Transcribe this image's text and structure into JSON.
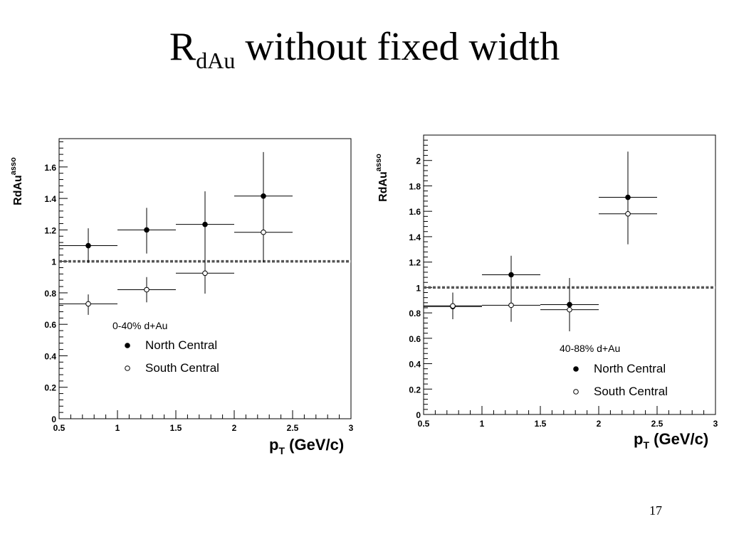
{
  "slide": {
    "title_main": "R",
    "title_sub": "dAu",
    "title_rest": "without fixed width",
    "page_number": "17"
  },
  "chart_data": [
    {
      "type": "scatter",
      "centrality_label": "0-40% d+Au",
      "ylabel_main": "RdAu",
      "ylabel_sup": "asso",
      "xlabel_main": "p",
      "xlabel_sub": "T",
      "xlabel_unit": " (GeV/c)",
      "xlim": [
        0.5,
        3
      ],
      "ylim": [
        0,
        1.78
      ],
      "xticks": [
        "0.5",
        "1",
        "1.5",
        "2",
        "2.5",
        "3"
      ],
      "xtick_values": [
        0.5,
        1,
        1.5,
        2,
        2.5,
        3
      ],
      "yticks": [
        "0",
        "0.2",
        "0.4",
        "0.6",
        "0.8",
        "1",
        "1.2",
        "1.4",
        "1.6"
      ],
      "ytick_values": [
        0,
        0.2,
        0.4,
        0.6,
        0.8,
        1,
        1.2,
        1.4,
        1.6
      ],
      "reference_line": 1.0,
      "legend_placement": "bottom-center",
      "series": [
        {
          "name": "North Central",
          "marker": "filled",
          "points": [
            {
              "x": 0.75,
              "y": 1.1,
              "xerr": 0.25,
              "yerr_lo": 0.11,
              "yerr_hi": 0.11
            },
            {
              "x": 1.25,
              "y": 1.2,
              "xerr": 0.25,
              "yerr_lo": 0.15,
              "yerr_hi": 0.14
            },
            {
              "x": 1.75,
              "y": 1.235,
              "xerr": 0.25,
              "yerr_lo": 0.43,
              "yerr_hi": 0.21
            },
            {
              "x": 2.25,
              "y": 1.415,
              "xerr": 0.25,
              "yerr_lo": 0.415,
              "yerr_hi": 0.28
            }
          ]
        },
        {
          "name": "South Central",
          "marker": "open",
          "points": [
            {
              "x": 0.75,
              "y": 0.73,
              "xerr": 0.25,
              "yerr_lo": 0.07,
              "yerr_hi": 0.06
            },
            {
              "x": 1.25,
              "y": 0.82,
              "xerr": 0.25,
              "yerr_lo": 0.08,
              "yerr_hi": 0.08
            },
            {
              "x": 1.75,
              "y": 0.925,
              "xerr": 0.25,
              "yerr_lo": 0.13,
              "yerr_hi": 0.15
            },
            {
              "x": 2.25,
              "y": 1.185,
              "xerr": 0.25,
              "yerr_lo": 0.19,
              "yerr_hi": 0.1
            }
          ]
        }
      ]
    },
    {
      "type": "scatter",
      "centrality_label": "40-88% d+Au",
      "ylabel_main": "RdAu",
      "ylabel_sup": "asso",
      "xlabel_main": "p",
      "xlabel_sub": "T",
      "xlabel_unit": " (GeV/c)",
      "xlim": [
        0.5,
        3
      ],
      "ylim": [
        0,
        2.2
      ],
      "xticks": [
        "0.5",
        "1",
        "1.5",
        "2",
        "2.5",
        "3"
      ],
      "xtick_values": [
        0.5,
        1,
        1.5,
        2,
        2.5,
        3
      ],
      "yticks": [
        "0",
        "0.2",
        "0.4",
        "0.6",
        "0.8",
        "1",
        "1.2",
        "1.4",
        "1.6",
        "1.8",
        "2"
      ],
      "ytick_values": [
        0,
        0.2,
        0.4,
        0.6,
        0.8,
        1,
        1.2,
        1.4,
        1.6,
        1.8,
        2
      ],
      "reference_line": 1.0,
      "legend_placement": "bottom-right",
      "series": [
        {
          "name": "North Central",
          "marker": "filled",
          "points": [
            {
              "x": 0.75,
              "y": 0.85,
              "xerr": 0.25,
              "yerr_lo": 0.1,
              "yerr_hi": 0.11
            },
            {
              "x": 1.25,
              "y": 1.1,
              "xerr": 0.25,
              "yerr_lo": 0.28,
              "yerr_hi": 0.15
            },
            {
              "x": 1.75,
              "y": 0.865,
              "xerr": 0.25,
              "yerr_lo": 0.21,
              "yerr_hi": 0.21
            },
            {
              "x": 2.25,
              "y": 1.71,
              "xerr": 0.25,
              "yerr_lo": 0.37,
              "yerr_hi": 0.36
            }
          ]
        },
        {
          "name": "South Central",
          "marker": "open",
          "points": [
            {
              "x": 0.75,
              "y": 0.855,
              "xerr": 0.25,
              "yerr_lo": 0.1,
              "yerr_hi": 0.1
            },
            {
              "x": 1.25,
              "y": 0.86,
              "xerr": 0.25,
              "yerr_lo": 0.13,
              "yerr_hi": 0.13
            },
            {
              "x": 1.75,
              "y": 0.825,
              "xerr": 0.25,
              "yerr_lo": 0.17,
              "yerr_hi": 0.17
            },
            {
              "x": 2.25,
              "y": 1.58,
              "xerr": 0.25,
              "yerr_lo": 0.23,
              "yerr_hi": 0.23
            }
          ]
        }
      ]
    }
  ]
}
